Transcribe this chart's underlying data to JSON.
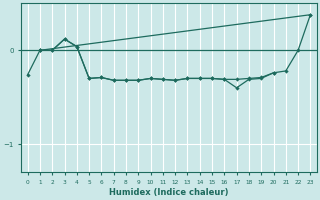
{
  "xlabel": "Humidex (Indice chaleur)",
  "bg_color": "#cce8e8",
  "grid_color": "#ffffff",
  "line_color": "#1e6b5e",
  "ylim": [
    -1.3,
    0.5
  ],
  "xlim": [
    -0.5,
    23.5
  ],
  "y_ticks": [
    -1,
    0
  ],
  "x_ticks": [
    0,
    1,
    2,
    3,
    4,
    5,
    6,
    7,
    8,
    9,
    10,
    11,
    12,
    13,
    14,
    15,
    16,
    17,
    18,
    19,
    20,
    21,
    22,
    23
  ],
  "line1_x": [
    1,
    23
  ],
  "line1_y": [
    0.0,
    0.38
  ],
  "line2_x": [
    1,
    2,
    3,
    4,
    5,
    6,
    7,
    8,
    9,
    10,
    11,
    12,
    13,
    14,
    15,
    16,
    17,
    18,
    19,
    20
  ],
  "line2_y": [
    0.0,
    0.0,
    0.12,
    0.04,
    -0.3,
    -0.29,
    -0.32,
    -0.32,
    -0.32,
    -0.3,
    -0.31,
    -0.32,
    -0.3,
    -0.3,
    -0.3,
    -0.31,
    -0.31,
    -0.3,
    -0.29,
    -0.24
  ],
  "line3_x": [
    0,
    1,
    2,
    3,
    4,
    5,
    6,
    7,
    8,
    9,
    10,
    11,
    12,
    13,
    14,
    15,
    16,
    17,
    18,
    19,
    20,
    21,
    22,
    23
  ],
  "line3_y": [
    -0.26,
    0.0,
    0.0,
    0.12,
    0.04,
    -0.3,
    -0.29,
    -0.32,
    -0.32,
    -0.32,
    -0.3,
    -0.31,
    -0.32,
    -0.3,
    -0.3,
    -0.3,
    -0.31,
    -0.4,
    -0.31,
    -0.3,
    -0.24,
    -0.22,
    0.0,
    0.38
  ]
}
